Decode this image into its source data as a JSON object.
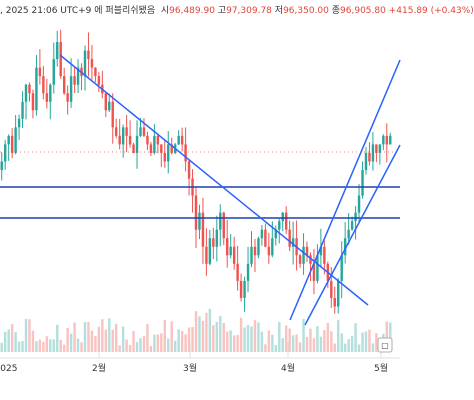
{
  "header": {
    "date_text": ", 2025 21:06 UTC+9",
    "notice": "에 퍼블리쉬됐음",
    "open_label": "시",
    "open": "96,489.90",
    "high_label": "고",
    "high": "97,309.78",
    "low_label": "저",
    "low": "96,350.00",
    "close_label": "종",
    "close": "96,905.80",
    "change": "+415.89 (+0.43%)"
  },
  "x_axis": {
    "labels": [
      "2025",
      "2월",
      "3월",
      "4월",
      "5월"
    ]
  },
  "colors": {
    "up": "#26a69a",
    "down": "#ef5350",
    "trendline": "#2962ff",
    "hline": "#1e40af",
    "price_line": "#ef5350"
  },
  "chart_data": {
    "type": "candlestick",
    "ohlc_last": {
      "open": 96489.9,
      "high": 97309.78,
      "low": 96350.0,
      "close": 96905.8
    },
    "horizontal_levels_note": "two blue support/resistance lines",
    "candles_close_series": [
      94,
      96,
      97,
      95,
      98,
      99,
      101,
      103,
      102,
      100,
      105,
      104,
      102,
      101,
      103,
      106,
      108,
      104,
      102,
      101,
      104,
      103,
      105,
      104,
      107,
      106,
      105,
      104,
      103,
      102,
      100,
      101,
      98,
      97,
      96,
      98,
      97,
      96,
      95,
      97,
      98,
      97,
      96,
      95,
      97,
      96,
      95,
      94,
      96,
      95,
      96,
      97,
      96,
      94,
      92,
      90,
      86,
      88,
      84,
      82,
      85,
      84,
      86,
      88,
      85,
      83,
      84,
      82,
      80,
      78,
      80,
      82,
      84,
      83,
      85,
      86,
      84,
      83,
      85,
      86,
      87,
      88,
      86,
      84,
      85,
      83,
      82,
      84,
      83,
      82,
      80,
      83,
      84,
      82,
      80,
      78,
      77,
      80,
      83,
      85,
      86,
      87,
      88,
      90,
      93,
      95,
      94,
      96,
      95,
      96,
      97,
      96,
      97
    ]
  }
}
